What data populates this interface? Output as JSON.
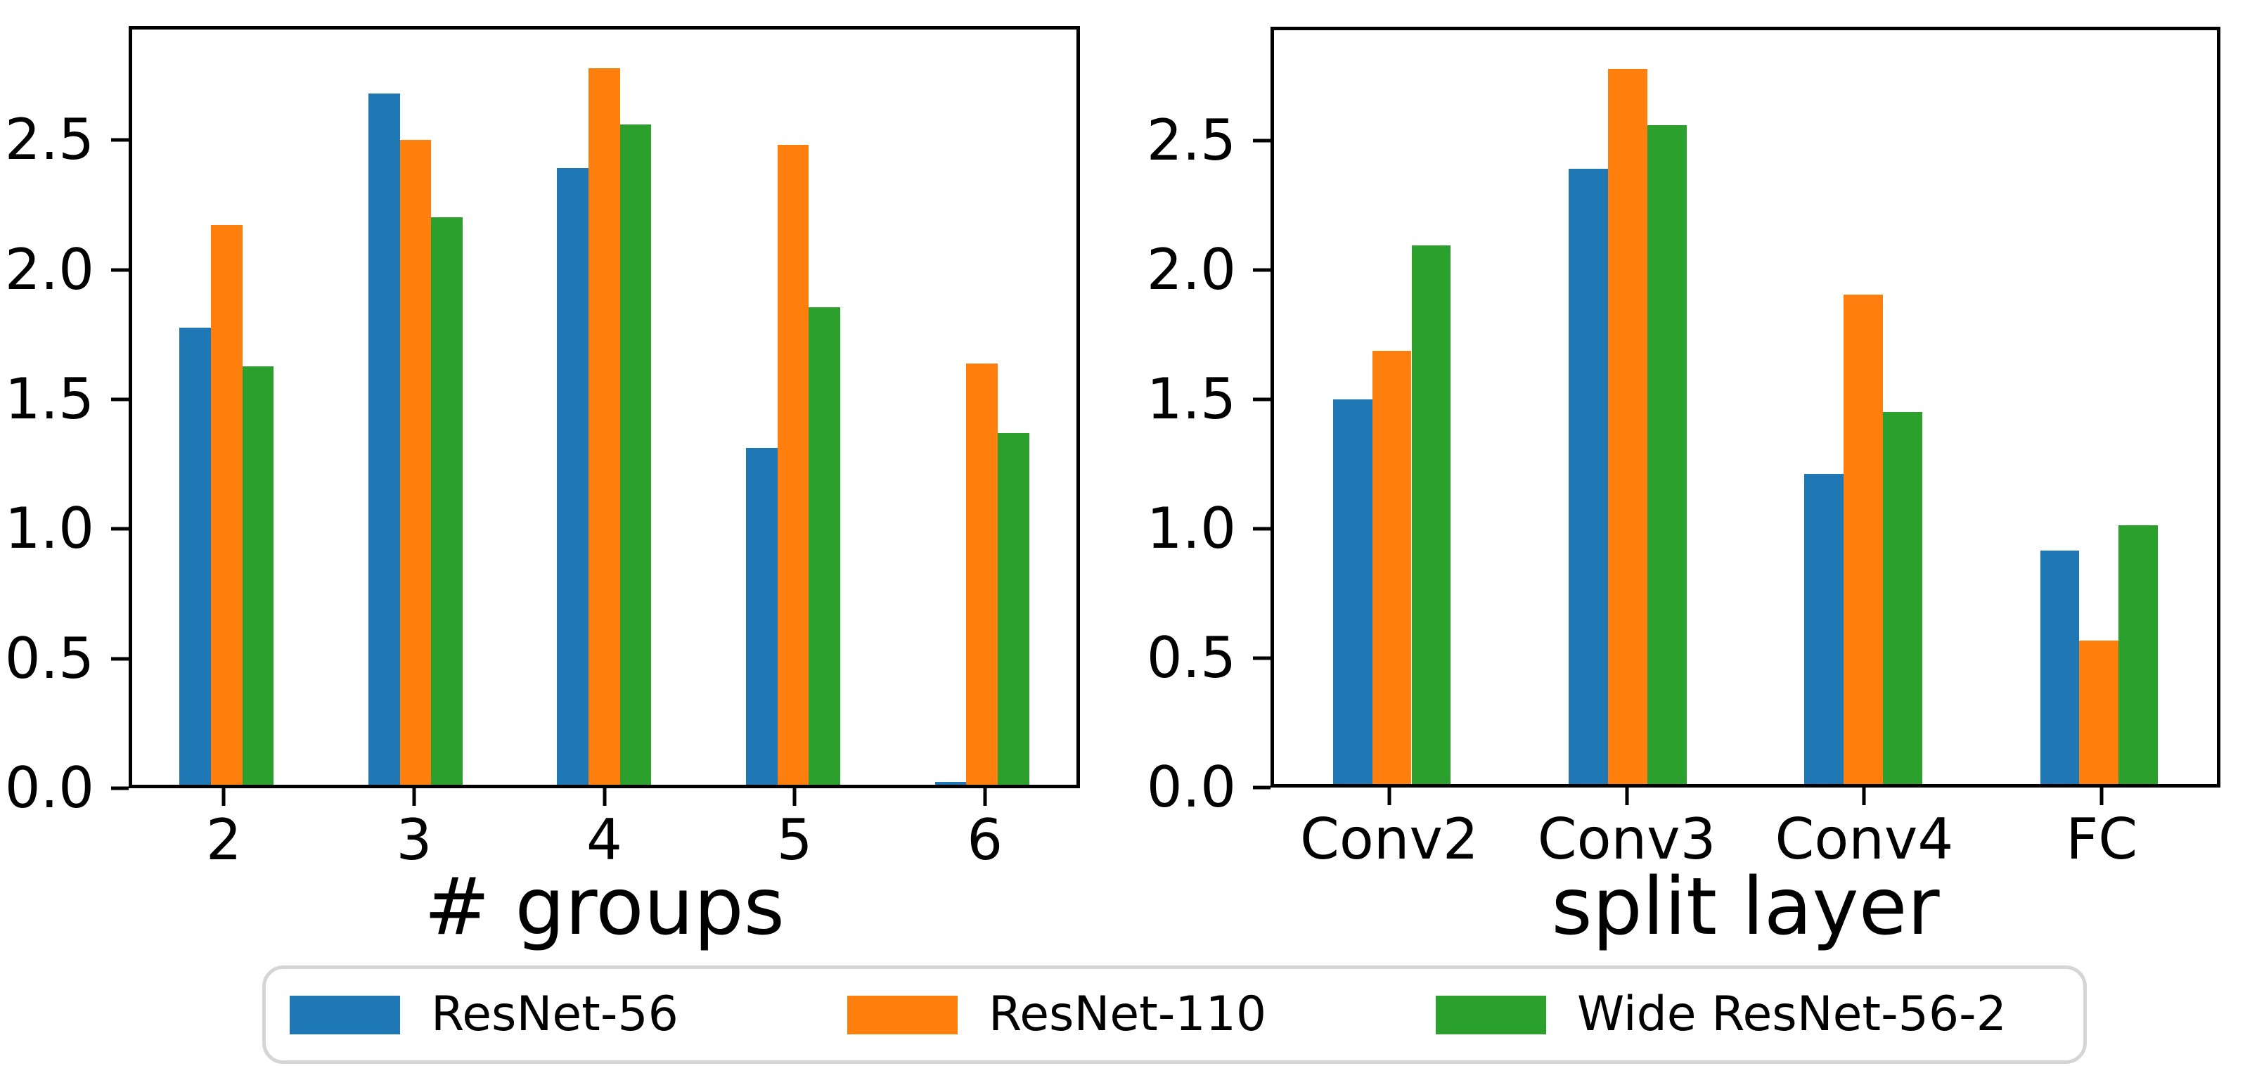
{
  "colors": {
    "series_blue": "#1f77b4",
    "series_orange": "#ff7f0e",
    "series_green": "#2ca02c",
    "axis": "#000000",
    "legend_border": "#d5d5d5"
  },
  "legend": {
    "items": [
      {
        "label": "ResNet-56",
        "color": "#1f77b4"
      },
      {
        "label": "ResNet-110",
        "color": "#ff7f0e"
      },
      {
        "label": "Wide ResNet-56-2",
        "color": "#2ca02c"
      }
    ],
    "position": "bottom-center"
  },
  "chart_data": [
    {
      "type": "bar",
      "categories": [
        "2",
        "3",
        "4",
        "5",
        "6"
      ],
      "series": [
        {
          "name": "ResNet-56",
          "color": "#1f77b4",
          "values": [
            1.78,
            2.69,
            2.4,
            1.31,
            0.01
          ]
        },
        {
          "name": "ResNet-110",
          "color": "#ff7f0e",
          "values": [
            2.18,
            2.51,
            2.79,
            2.49,
            1.64
          ]
        },
        {
          "name": "Wide ResNet-56-2",
          "color": "#2ca02c",
          "values": [
            1.63,
            2.21,
            2.57,
            1.86,
            1.37
          ]
        }
      ],
      "title": "",
      "xlabel": "# groups",
      "ylabel": "",
      "yticks": [
        "0.0",
        "0.5",
        "1.0",
        "1.5",
        "2.0",
        "2.5"
      ],
      "ylim": [
        0,
        2.94
      ],
      "grid": false
    },
    {
      "type": "bar",
      "categories": [
        "Conv2",
        "Conv3",
        "Conv4",
        "FC"
      ],
      "series": [
        {
          "name": "ResNet-56",
          "color": "#1f77b4",
          "values": [
            1.5,
            2.4,
            1.21,
            0.91
          ]
        },
        {
          "name": "ResNet-110",
          "color": "#ff7f0e",
          "values": [
            1.69,
            2.79,
            1.91,
            0.56
          ]
        },
        {
          "name": "Wide ResNet-56-2",
          "color": "#2ca02c",
          "values": [
            2.1,
            2.57,
            1.45,
            1.01
          ]
        }
      ],
      "title": "",
      "xlabel": "split layer",
      "ylabel": "",
      "yticks": [
        "0.0",
        "0.5",
        "1.0",
        "1.5",
        "2.0",
        "2.5"
      ],
      "ylim": [
        0,
        2.94
      ],
      "grid": false
    }
  ]
}
